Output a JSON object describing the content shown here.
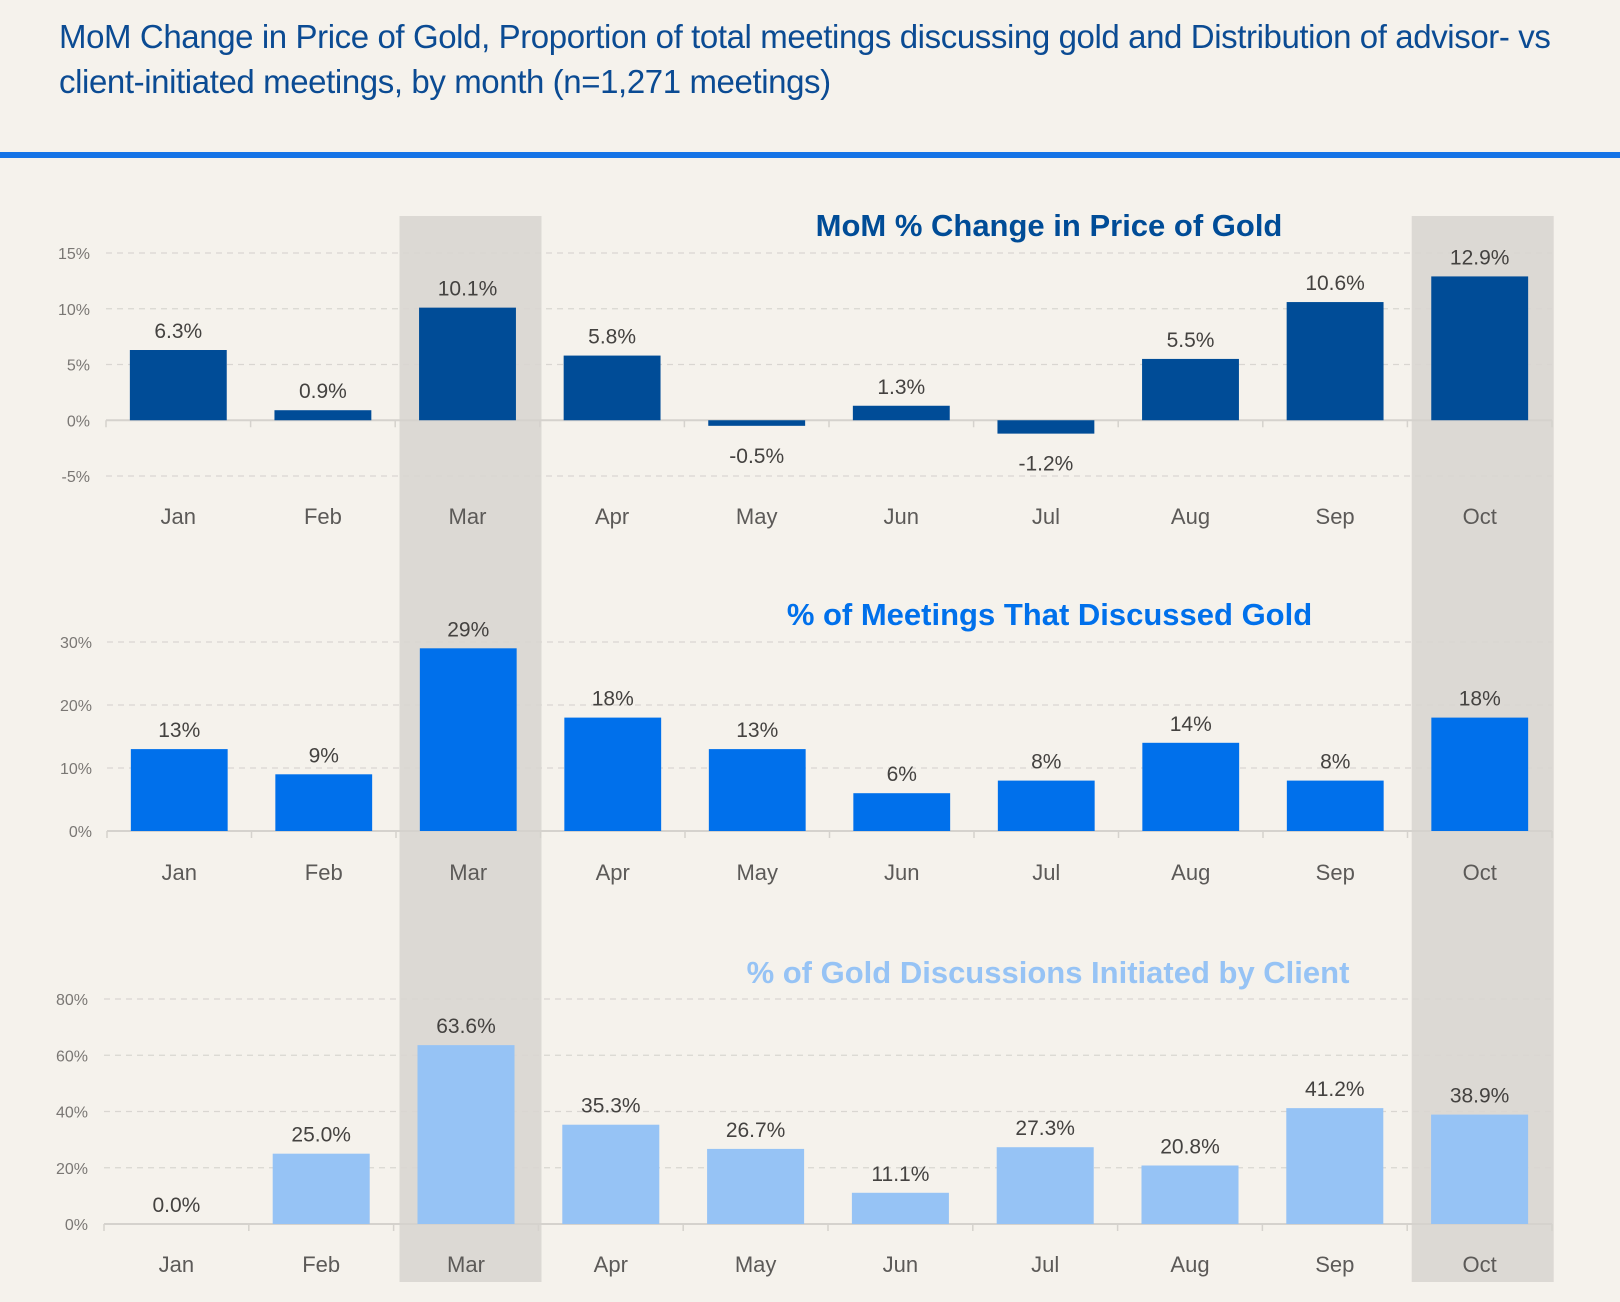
{
  "page": {
    "title": "MoM Change in Price of Gold, Proportion of total meetings discussing gold and Distribution of advisor- vs client-initiated meetings, by month (n=1,271 meetings)"
  },
  "colors": {
    "background": "#f5f2ec",
    "accent_rule": "#1473e6",
    "highlight_band": "#dcd9d4",
    "gridline": "#d9d6d1",
    "axis": "#d5d2cd"
  },
  "highlighted_months": [
    "Mar",
    "Oct"
  ],
  "chart_data": [
    {
      "type": "bar",
      "title": "MoM % Change in Price of Gold",
      "title_color": "#004c97",
      "bar_color": "#004c97",
      "categories": [
        "Jan",
        "Feb",
        "Mar",
        "Apr",
        "May",
        "Jun",
        "Jul",
        "Aug",
        "Sep",
        "Oct"
      ],
      "values": [
        6.3,
        0.9,
        10.1,
        5.8,
        -0.5,
        1.3,
        -1.2,
        5.5,
        10.6,
        12.9
      ],
      "labels": [
        "6.3%",
        "0.9%",
        "10.1%",
        "5.8%",
        "-0.5%",
        "1.3%",
        "-1.2%",
        "5.5%",
        "10.6%",
        "12.9%"
      ],
      "yticks": [
        -5,
        0,
        5,
        10,
        15
      ],
      "ytick_labels": [
        "-5%",
        "0%",
        "5%",
        "10%",
        "15%"
      ],
      "ylim": [
        -5,
        15
      ],
      "xlabel": "",
      "ylabel": "",
      "grid": true,
      "legend": "none"
    },
    {
      "type": "bar",
      "title": "% of Meetings That Discussed Gold",
      "title_color": "#0070eb",
      "bar_color": "#0070eb",
      "categories": [
        "Jan",
        "Feb",
        "Mar",
        "Apr",
        "May",
        "Jun",
        "Jul",
        "Aug",
        "Sep",
        "Oct"
      ],
      "values": [
        13,
        9,
        29,
        18,
        13,
        6,
        8,
        14,
        8,
        18
      ],
      "labels": [
        "13%",
        "9%",
        "29%",
        "18%",
        "13%",
        "6%",
        "8%",
        "14%",
        "8%",
        "18%"
      ],
      "yticks": [
        0,
        10,
        20,
        30
      ],
      "ytick_labels": [
        "0%",
        "10%",
        "20%",
        "30%"
      ],
      "ylim": [
        0,
        30
      ],
      "xlabel": "",
      "ylabel": "",
      "grid": true,
      "legend": "none"
    },
    {
      "type": "bar",
      "title": "% of Gold Discussions Initiated by Client",
      "title_color": "#96c3f5",
      "bar_color": "#96c3f5",
      "categories": [
        "Jan",
        "Feb",
        "Mar",
        "Apr",
        "May",
        "Jun",
        "Jul",
        "Aug",
        "Sep",
        "Oct"
      ],
      "values": [
        0.0,
        25.0,
        63.6,
        35.3,
        26.7,
        11.1,
        27.3,
        20.8,
        41.2,
        38.9
      ],
      "labels": [
        "0.0%",
        "25.0%",
        "63.6%",
        "35.3%",
        "26.7%",
        "11.1%",
        "27.3%",
        "20.8%",
        "41.2%",
        "38.9%"
      ],
      "yticks": [
        0,
        20,
        40,
        60,
        80
      ],
      "ytick_labels": [
        "0%",
        "20%",
        "40%",
        "60%",
        "80%"
      ],
      "ylim": [
        0,
        80
      ],
      "xlabel": "",
      "ylabel": "",
      "grid": true,
      "legend": "none"
    }
  ]
}
